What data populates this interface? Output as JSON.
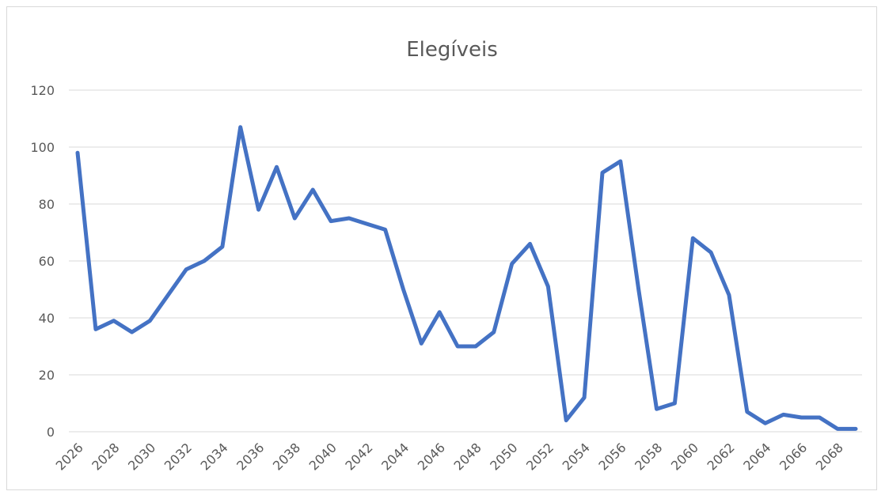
{
  "chart_data": {
    "type": "line",
    "title": "Elegíveis",
    "xlabel": "",
    "ylabel": "",
    "x": [
      2026,
      2027,
      2028,
      2029,
      2030,
      2031,
      2032,
      2033,
      2034,
      2035,
      2036,
      2037,
      2038,
      2039,
      2040,
      2041,
      2042,
      2043,
      2044,
      2045,
      2046,
      2047,
      2048,
      2049,
      2050,
      2051,
      2052,
      2053,
      2054,
      2055,
      2056,
      2057,
      2058,
      2059,
      2060,
      2061,
      2062,
      2063,
      2064,
      2065,
      2066,
      2067,
      2068,
      2069
    ],
    "x_tick_labels": [
      "2026",
      "2028",
      "2030",
      "2032",
      "2034",
      "2036",
      "2038",
      "2040",
      "2042",
      "2044",
      "2046",
      "2048",
      "2050",
      "2052",
      "2054",
      "2056",
      "2058",
      "2060",
      "2062",
      "2064",
      "2066",
      "2068"
    ],
    "y_tick_labels": [
      "0",
      "20",
      "40",
      "60",
      "80",
      "100",
      "120"
    ],
    "ylim": [
      0,
      120
    ],
    "grid": true,
    "legend": "none",
    "series": [
      {
        "color": "#4472c4",
        "values": [
          98,
          36,
          39,
          35,
          39,
          48,
          57,
          60,
          65,
          107,
          78,
          93,
          75,
          85,
          74,
          75,
          73,
          71,
          50,
          31,
          42,
          30,
          30,
          35,
          59,
          66,
          51,
          4,
          12,
          91,
          95,
          50,
          8,
          10,
          68,
          63,
          48,
          7,
          3,
          6,
          5,
          5,
          1,
          1
        ]
      }
    ]
  }
}
